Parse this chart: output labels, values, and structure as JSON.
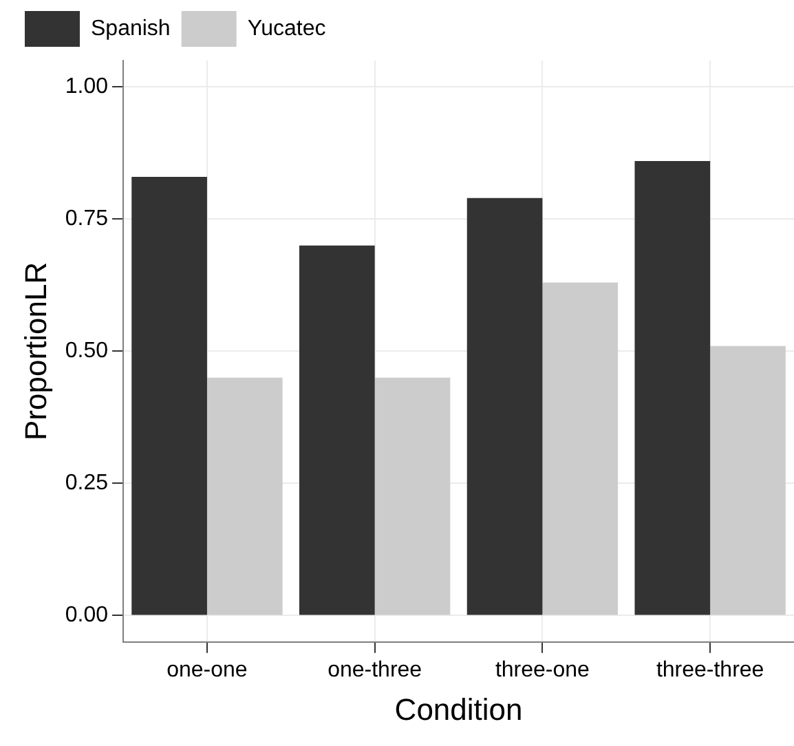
{
  "chart_data": {
    "type": "bar",
    "xlabel": "Condition",
    "ylabel": "ProportionLR",
    "categories": [
      "one-one",
      "one-three",
      "three-one",
      "three-three"
    ],
    "series": [
      {
        "name": "Spanish",
        "color": "#333333",
        "values": [
          0.83,
          0.7,
          0.79,
          0.86
        ]
      },
      {
        "name": "Yucatec",
        "color": "#cccccc",
        "values": [
          0.45,
          0.45,
          0.63,
          0.51
        ]
      }
    ],
    "ylim": [
      -0.05,
      1.05
    ],
    "yticks": [
      {
        "value": 0,
        "label": "0.00"
      },
      {
        "value": 0.25,
        "label": "0.25"
      },
      {
        "value": 0.5,
        "label": "0.50"
      },
      {
        "value": 0.75,
        "label": "0.75"
      },
      {
        "value": 1,
        "label": "1.00"
      }
    ],
    "grid": true,
    "legend": "top left"
  }
}
